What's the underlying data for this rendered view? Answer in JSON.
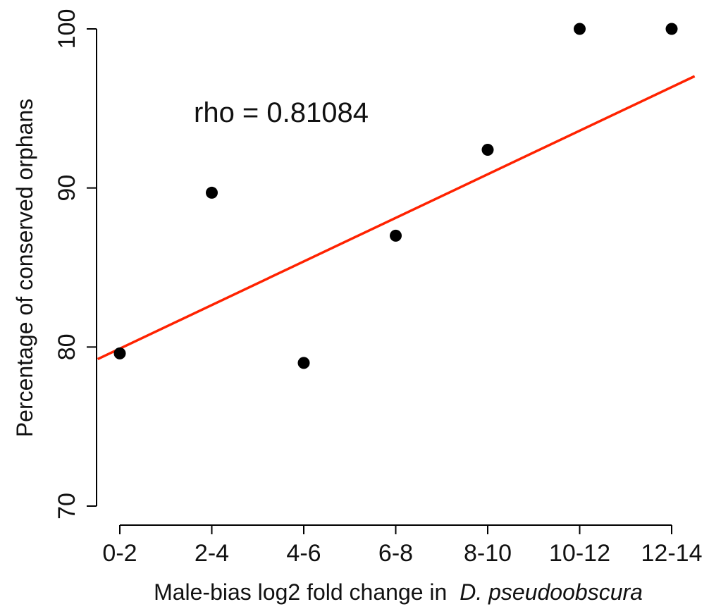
{
  "chart_data": {
    "type": "scatter",
    "categories": [
      "0-2",
      "2-4",
      "4-6",
      "6-8",
      "8-10",
      "10-12",
      "12-14"
    ],
    "values": [
      79.6,
      89.7,
      79.0,
      87.0,
      92.4,
      100.0,
      100.0
    ],
    "xlabel": "Male-bias log2 fold change in",
    "xlabel_species": "D. pseudoobscura",
    "ylabel": "Percentage of conserved orphans",
    "ylim": [
      70,
      100
    ],
    "yticks": [
      70,
      80,
      90,
      100
    ],
    "annotation": "rho = 0.81084",
    "regression": {
      "intercept": 79.9,
      "slope": 2.74,
      "color": "#ff2200"
    },
    "point_color": "#000000",
    "grid": false
  }
}
